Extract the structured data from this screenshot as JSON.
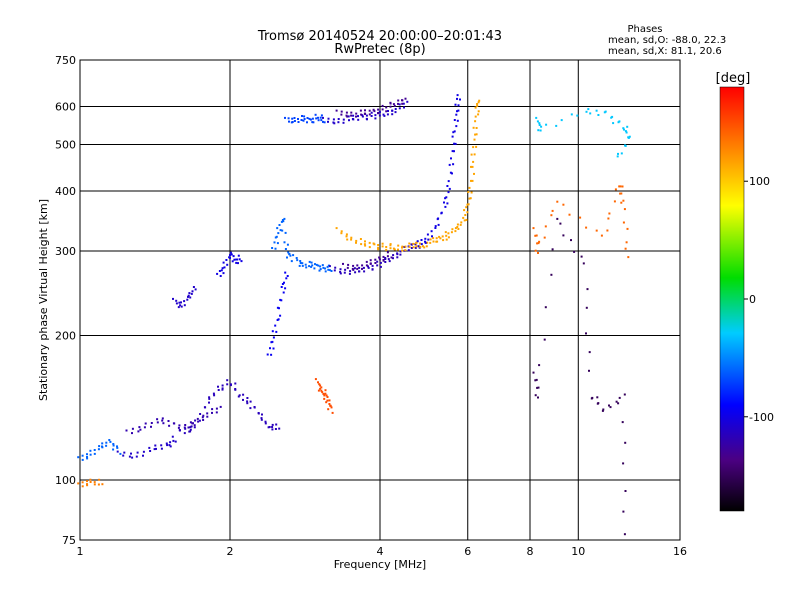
{
  "chart_data": {
    "type": "scatter",
    "title": "Tromsø 20140524 20:00:00–20:01:43",
    "subtitle": "RwPretec (8p)",
    "xlabel": "Frequency [MHz]",
    "ylabel": "Stationary phase Virtual Height [km]",
    "x_scale": "log",
    "y_scale": "log",
    "xlim": [
      1,
      16
    ],
    "ylim": [
      75,
      750
    ],
    "x_ticks": [
      1,
      2,
      4,
      6,
      8,
      10,
      16
    ],
    "x_tick_labels": [
      "1",
      "2",
      "4",
      "6",
      "8",
      "10",
      "16"
    ],
    "y_ticks": [
      75,
      100,
      200,
      300,
      400,
      500,
      600,
      750
    ],
    "y_tick_labels": [
      "75",
      "100",
      "200",
      "300",
      "400",
      "500",
      "600",
      "750"
    ],
    "grid": true,
    "stats": {
      "header": "Phases",
      "o_line": "mean, sd,O: -88.0, 22.3",
      "x_line": "mean, sd,X:  81.1, 20.6"
    },
    "colorbar": {
      "label": "[deg]",
      "range": [
        -180,
        180
      ],
      "ticks": [
        100,
        0,
        -100
      ],
      "tick_labels": [
        "100",
        "0",
        "-100"
      ]
    },
    "traces": [
      {
        "phase": -60,
        "points": [
          [
            1.0,
            110
          ],
          [
            1.05,
            114
          ],
          [
            1.1,
            117
          ],
          [
            1.15,
            120
          ],
          [
            1.2,
            115
          ]
        ]
      },
      {
        "phase": -110,
        "points": [
          [
            1.2,
            113
          ],
          [
            1.3,
            113
          ],
          [
            1.4,
            116
          ],
          [
            1.5,
            118
          ],
          [
            1.55,
            122
          ]
        ]
      },
      {
        "phase": -120,
        "points": [
          [
            1.25,
            125
          ],
          [
            1.35,
            130
          ],
          [
            1.45,
            133
          ],
          [
            1.55,
            130
          ],
          [
            1.65,
            128
          ],
          [
            1.7,
            132
          ],
          [
            1.8,
            137
          ],
          [
            1.9,
            140
          ]
        ]
      },
      {
        "phase": -115,
        "points": [
          [
            1.6,
            125
          ],
          [
            1.7,
            130
          ],
          [
            1.8,
            145
          ],
          [
            1.9,
            155
          ],
          [
            2.0,
            160
          ],
          [
            2.1,
            150
          ],
          [
            2.2,
            145
          ],
          [
            2.3,
            135
          ],
          [
            2.4,
            130
          ],
          [
            2.5,
            128
          ]
        ]
      },
      {
        "phase": -110,
        "points": [
          [
            1.55,
            235
          ],
          [
            1.6,
            232
          ],
          [
            1.65,
            240
          ],
          [
            1.7,
            250
          ]
        ]
      },
      {
        "phase": -100,
        "points": [
          [
            1.9,
            265
          ],
          [
            1.95,
            280
          ],
          [
            2.0,
            295
          ],
          [
            2.05,
            285
          ],
          [
            2.1,
            290
          ]
        ]
      },
      {
        "phase": -95,
        "points": [
          [
            2.4,
            180
          ],
          [
            2.45,
            200
          ],
          [
            2.5,
            220
          ],
          [
            2.55,
            250
          ],
          [
            2.6,
            270
          ]
        ]
      },
      {
        "phase": -60,
        "points": [
          [
            2.45,
            300
          ],
          [
            2.5,
            330
          ],
          [
            2.55,
            350
          ],
          [
            2.6,
            300
          ],
          [
            2.65,
            290
          ]
        ]
      },
      {
        "phase": -70,
        "points": [
          [
            2.6,
            560
          ],
          [
            2.7,
            565
          ],
          [
            2.8,
            565
          ],
          [
            2.9,
            560
          ],
          [
            3.0,
            570
          ],
          [
            3.1,
            560
          ]
        ]
      },
      {
        "phase": -110,
        "points": [
          [
            3.1,
            560
          ],
          [
            3.3,
            562
          ],
          [
            3.5,
            565
          ],
          [
            3.7,
            570
          ],
          [
            3.9,
            575
          ],
          [
            4.1,
            580
          ],
          [
            4.3,
            590
          ],
          [
            4.5,
            605
          ]
        ]
      },
      {
        "phase": -130,
        "points": [
          [
            3.3,
            580
          ],
          [
            3.5,
            580
          ],
          [
            3.7,
            580
          ],
          [
            3.9,
            585
          ],
          [
            4.1,
            595
          ],
          [
            4.3,
            610
          ],
          [
            4.5,
            620
          ]
        ]
      },
      {
        "phase": -60,
        "points": [
          [
            2.7,
            290
          ],
          [
            2.8,
            282
          ],
          [
            2.9,
            280
          ],
          [
            3.0,
            278
          ],
          [
            3.1,
            276
          ],
          [
            3.2,
            275
          ]
        ]
      },
      {
        "phase": -115,
        "points": [
          [
            3.2,
            275
          ],
          [
            3.4,
            273
          ],
          [
            3.6,
            272
          ],
          [
            3.8,
            276
          ],
          [
            4.0,
            282
          ],
          [
            4.2,
            290
          ],
          [
            4.4,
            298
          ],
          [
            4.6,
            305
          ],
          [
            4.8,
            310
          ]
        ]
      },
      {
        "phase": -130,
        "points": [
          [
            3.4,
            278
          ],
          [
            3.6,
            278
          ],
          [
            3.8,
            282
          ],
          [
            4.0,
            288
          ],
          [
            4.2,
            295
          ]
        ]
      },
      {
        "phase": 115,
        "points": [
          [
            3.3,
            330
          ],
          [
            3.5,
            320
          ],
          [
            3.7,
            310
          ],
          [
            3.9,
            308
          ],
          [
            4.1,
            306
          ],
          [
            4.3,
            305
          ],
          [
            4.5,
            305
          ],
          [
            4.7,
            308
          ],
          [
            4.9,
            310
          ],
          [
            5.1,
            314
          ],
          [
            5.3,
            318
          ],
          [
            5.5,
            325
          ],
          [
            5.7,
            335
          ],
          [
            5.9,
            350
          ],
          [
            6.0,
            370
          ],
          [
            6.1,
            410
          ],
          [
            6.15,
            460
          ],
          [
            6.2,
            520
          ],
          [
            6.25,
            580
          ],
          [
            6.3,
            620
          ]
        ]
      },
      {
        "phase": -100,
        "points": [
          [
            4.8,
            310
          ],
          [
            5.0,
            320
          ],
          [
            5.2,
            340
          ],
          [
            5.4,
            375
          ],
          [
            5.5,
            410
          ],
          [
            5.6,
            470
          ],
          [
            5.65,
            530
          ],
          [
            5.7,
            580
          ],
          [
            5.75,
            640
          ]
        ]
      },
      {
        "phase": 150,
        "points": [
          [
            3.0,
            160
          ],
          [
            3.05,
            155
          ],
          [
            3.1,
            150
          ],
          [
            3.15,
            145
          ],
          [
            3.2,
            140
          ]
        ]
      },
      {
        "phase": 130,
        "points": [
          [
            1.0,
            97
          ],
          [
            1.05,
            100
          ],
          [
            1.1,
            98
          ]
        ]
      },
      {
        "phase": -30,
        "points": [
          [
            8.3,
            560
          ],
          [
            8.4,
            540
          ],
          [
            10.3,
            585
          ],
          [
            11.4,
            580
          ],
          [
            12.3,
            545
          ],
          [
            12.7,
            520
          ],
          [
            12.0,
            470
          ]
        ]
      },
      {
        "phase": 140,
        "points": [
          [
            8.2,
            330
          ],
          [
            8.3,
            300
          ],
          [
            9.0,
            380
          ],
          [
            11.2,
            320
          ],
          [
            12.1,
            415
          ],
          [
            12.3,
            380
          ],
          [
            12.6,
            290
          ]
        ]
      },
      {
        "phase": -150,
        "points": [
          [
            8.2,
            165
          ],
          [
            8.3,
            150
          ],
          [
            9.0,
            350
          ],
          [
            10.3,
            280
          ],
          [
            10.6,
            150
          ],
          [
            11.3,
            140
          ],
          [
            12.4,
            150
          ],
          [
            12.3,
            76
          ]
        ]
      }
    ]
  }
}
